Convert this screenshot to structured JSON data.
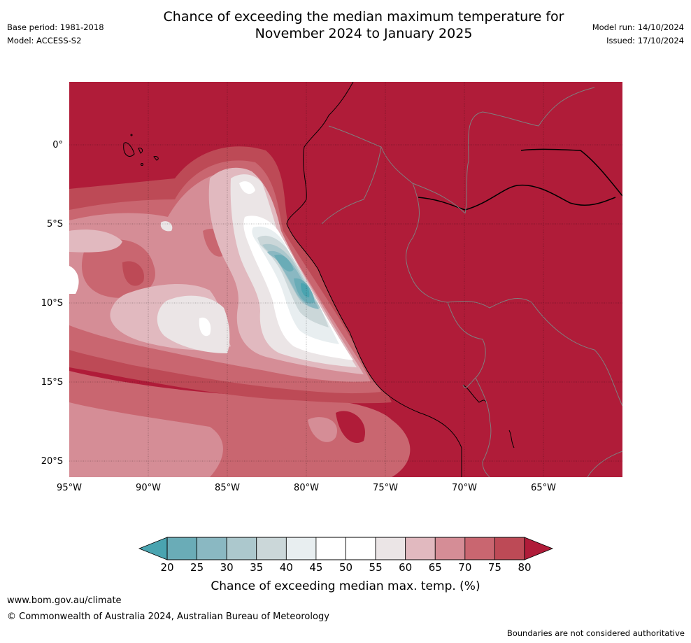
{
  "title": {
    "line1": "Chance of exceeding the median maximum temperature for",
    "line2": "November 2024 to January 2025"
  },
  "meta": {
    "base_period": "Base period: 1981-2018",
    "model": "Model: ACCESS-S2",
    "model_run": "Model run: 14/10/2024",
    "issued": "Issued: 17/10/2024"
  },
  "map": {
    "lon_ticks": [
      "95°W",
      "90°W",
      "85°W",
      "80°W",
      "75°W",
      "70°W",
      "65°W"
    ],
    "lat_ticks": [
      "0°",
      "5°S",
      "10°S",
      "15°S",
      "20°S"
    ]
  },
  "colorbar": {
    "ticks": [
      "20",
      "25",
      "30",
      "35",
      "40",
      "45",
      "50",
      "55",
      "60",
      "65",
      "70",
      "75",
      "80"
    ],
    "colors": [
      "#6aacb7",
      "#8ab8c2",
      "#acc8cd",
      "#cbd7d9",
      "#e8eef0",
      "#ffffff",
      "#ffffff",
      "#ebe5e6",
      "#e1b9bf",
      "#d58d96",
      "#c96670",
      "#bd4a56"
    ],
    "low_color": "#4aa4b0",
    "high_color": "#b01c39",
    "label": "Chance of exceeding median max. temp. (%)"
  },
  "footer": {
    "url": "www.bom.gov.au/climate",
    "copyright": "© Commonwealth of Australia 2024, Australian Bureau of Meteorology",
    "note": "Boundaries are not considered authoritative"
  }
}
